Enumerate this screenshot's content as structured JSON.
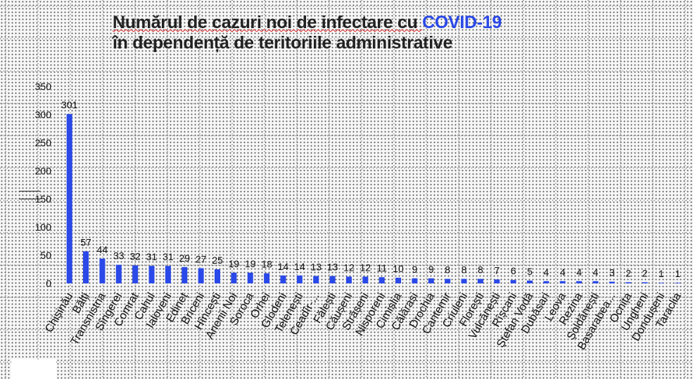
{
  "title": {
    "line1_part1": "Numărul de cazuri noi de infectare cu ",
    "line1_accent": "COVID-19",
    "line2": "în dependență de teritoriile administrative"
  },
  "colors": {
    "bar": "#2a49e8",
    "accent": "#2a49e8",
    "text": "#111111"
  },
  "chart_data": {
    "type": "bar",
    "title": "Numărul de cazuri noi de infectare cu COVID-19 în dependență de teritoriile administrative",
    "xlabel": "",
    "ylabel": "",
    "ylim": [
      0,
      350
    ],
    "yticks": [
      0,
      50,
      100,
      150,
      200,
      250,
      300,
      350
    ],
    "grid": true,
    "categories": [
      "Chișinău",
      "Bălți",
      "Transnistria",
      "Sîngerei",
      "Comrat",
      "Cahul",
      "Ialoveni",
      "Edineț",
      "Briceni",
      "Hîncești",
      "Anenii Noi",
      "Soroca",
      "Orhei",
      "Glodeni",
      "Telenești",
      "Ceadîr-...",
      "Fălești",
      "Căușeni",
      "Strășeni",
      "Nisporeni",
      "Cimișlia",
      "Călărași",
      "Drochia",
      "Cantemir",
      "Criuleni",
      "Florești",
      "Vulcănești",
      "Rîșcani",
      "Ștefan Vodă",
      "Dubăsari",
      "Leova",
      "Rezina",
      "Șoldănești",
      "Basarabea...",
      "Ocnița",
      "Ungheni",
      "Dondușeni",
      "Taraclia"
    ],
    "values": [
      301,
      57,
      44,
      33,
      32,
      31,
      31,
      29,
      27,
      25,
      19,
      19,
      18,
      14,
      14,
      13,
      13,
      12,
      12,
      11,
      10,
      9,
      9,
      8,
      8,
      8,
      7,
      6,
      5,
      4,
      4,
      4,
      4,
      3,
      2,
      2,
      1,
      1
    ],
    "value_labels_shown": true
  }
}
